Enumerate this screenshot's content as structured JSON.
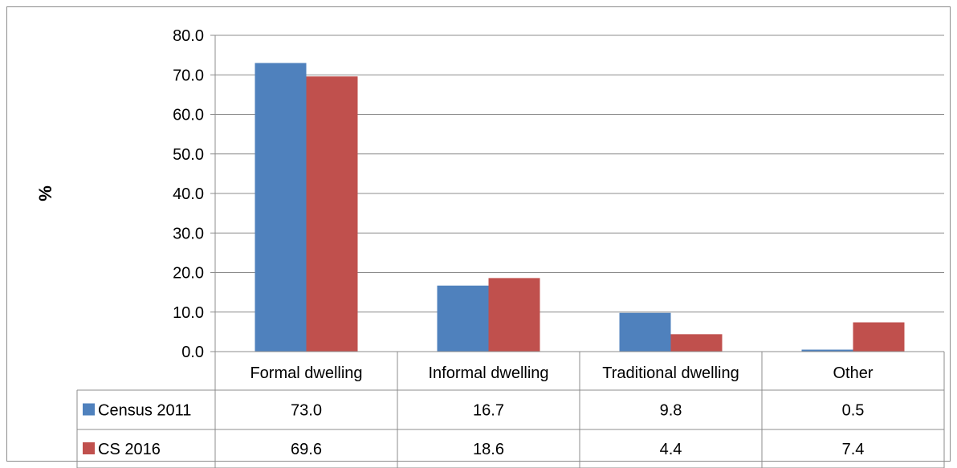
{
  "chart_data": {
    "type": "bar",
    "title": "",
    "xlabel": "",
    "ylabel": "%",
    "ylim": [
      0,
      80
    ],
    "yticks": [
      "0.0",
      "10.0",
      "20.0",
      "30.0",
      "40.0",
      "50.0",
      "60.0",
      "70.0",
      "80.0"
    ],
    "categories": [
      "Formal dwelling",
      "Informal dwelling",
      "Traditional dwelling",
      "Other"
    ],
    "grid": true,
    "legend": "data-table",
    "series": [
      {
        "name": "Census 2011",
        "color": "#4f81bd",
        "values": [
          73.0,
          16.7,
          9.8,
          0.5
        ],
        "labels": [
          "73.0",
          "16.7",
          "9.8",
          "0.5"
        ]
      },
      {
        "name": "CS 2016",
        "color": "#c0504d",
        "values": [
          69.6,
          18.6,
          4.4,
          7.4
        ],
        "labels": [
          "69.6",
          "18.6",
          "4.4",
          "7.4"
        ]
      }
    ]
  }
}
